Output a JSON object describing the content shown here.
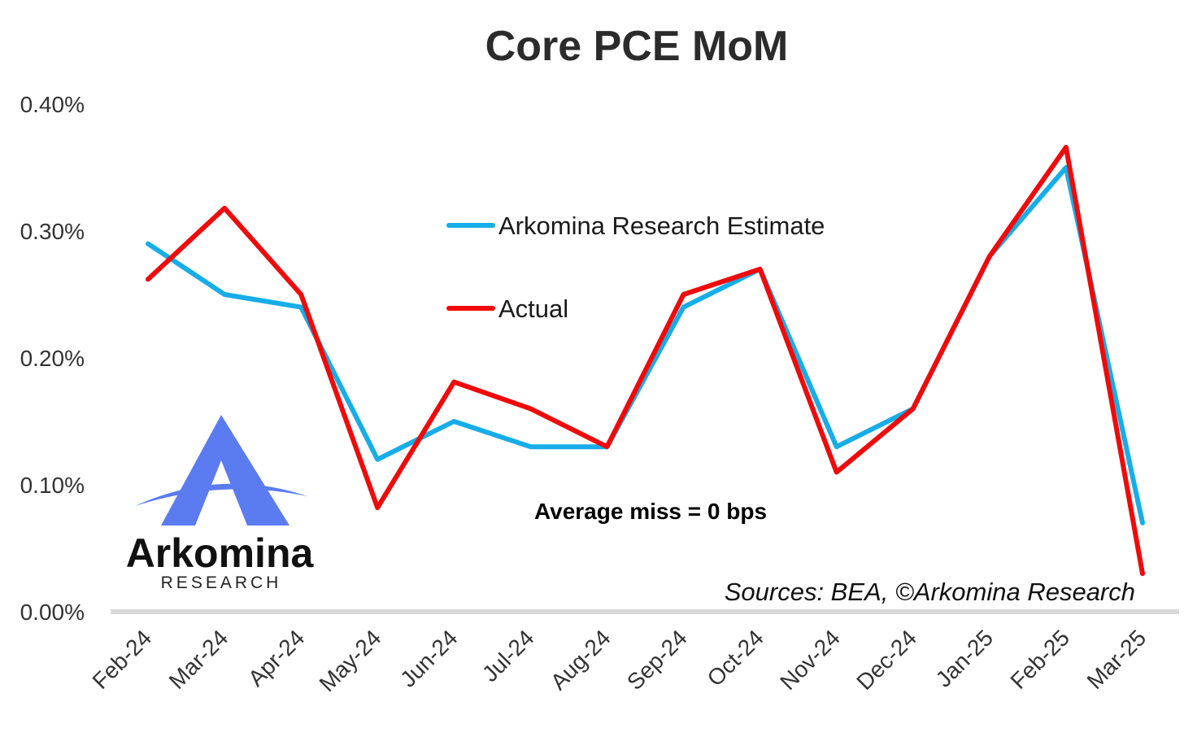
{
  "chart_data": {
    "type": "line",
    "title": "Core PCE MoM",
    "categories": [
      "Feb-24",
      "Mar-24",
      "Apr-24",
      "May-24",
      "Jun-24",
      "Jul-24",
      "Aug-24",
      "Sep-24",
      "Oct-24",
      "Nov-24",
      "Dec-24",
      "Jan-25",
      "Feb-25",
      "Mar-25"
    ],
    "series": [
      {
        "name": "Arkomina Research Estimate",
        "color": "#16ADE8",
        "values": [
          0.29,
          0.25,
          0.24,
          0.12,
          0.15,
          0.13,
          0.13,
          0.24,
          0.27,
          0.13,
          0.16,
          0.28,
          0.35,
          0.07
        ]
      },
      {
        "name": "Actual",
        "color": "#F00A0A",
        "values": [
          0.262,
          0.318,
          0.25,
          0.082,
          0.181,
          0.16,
          0.13,
          0.25,
          0.27,
          0.11,
          0.16,
          0.28,
          0.366,
          0.03
        ]
      }
    ],
    "ylim": [
      0,
      0.4
    ],
    "yticks": [
      "0.00%",
      "0.10%",
      "0.20%",
      "0.30%",
      "0.40%"
    ],
    "xlabel": "",
    "ylabel": "",
    "grid": false,
    "legend_position": "top-center",
    "annotation": "Average miss = 0 bps",
    "source": "Sources: BEA, ©Arkomina Research"
  },
  "logo": {
    "name": "Arkomina",
    "sub": "RESEARCH",
    "color": "#5B7BF0"
  }
}
